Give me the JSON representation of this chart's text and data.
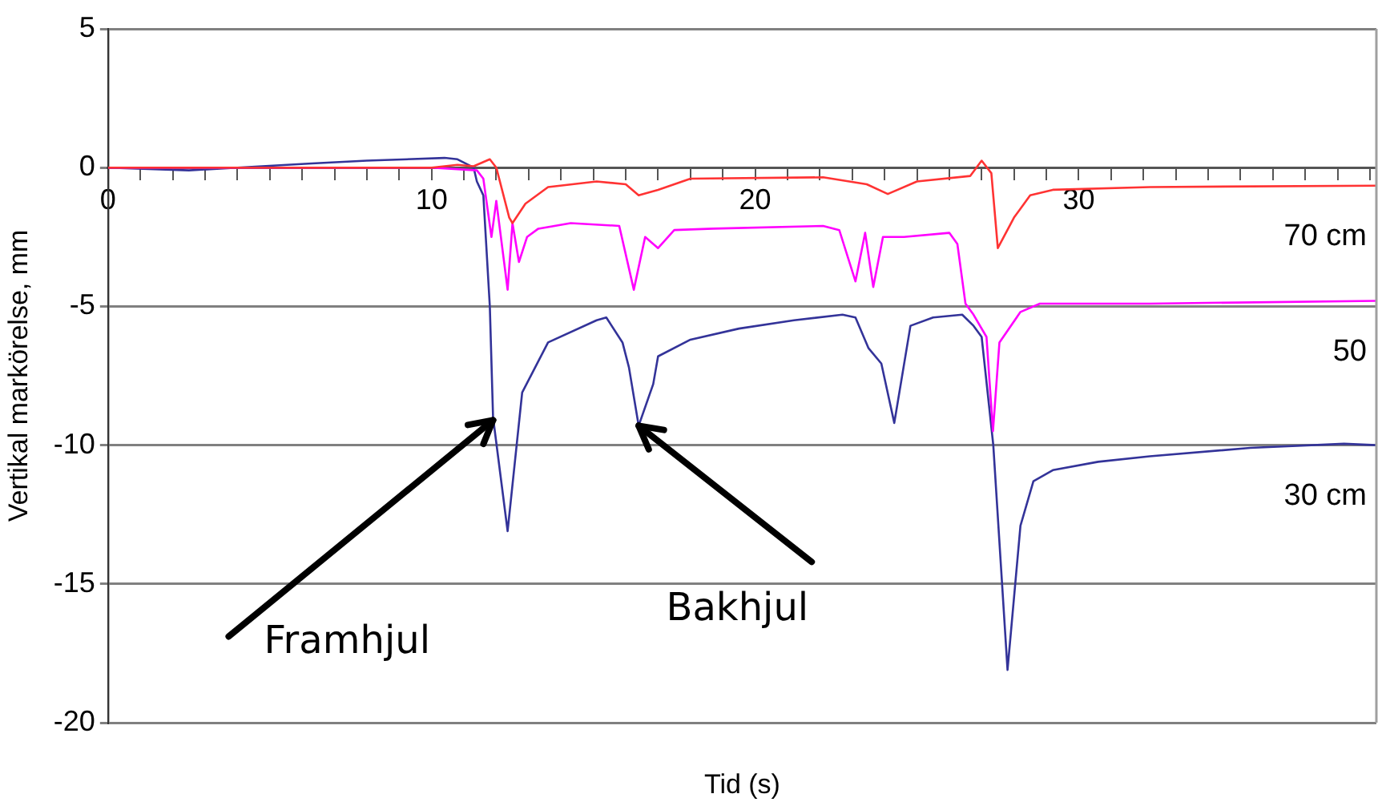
{
  "chart_data": {
    "type": "line",
    "xlabel": "Tid (s)",
    "ylabel": "Vertikal markörelse, mm",
    "xlim": [
      0,
      39.2
    ],
    "ylim": [
      -20,
      5
    ],
    "yticks": [
      -20,
      -15,
      -10,
      -5,
      0,
      5
    ],
    "xticks": [
      0,
      {
        "value": 1,
        "label": null
      },
      {
        "value": 2,
        "label": null
      },
      {
        "value": 3,
        "label": null
      },
      {
        "value": 4,
        "label": null
      },
      {
        "value": 5,
        "label": null
      },
      {
        "value": 6,
        "label": null
      },
      {
        "value": 7,
        "label": null
      },
      {
        "value": 8,
        "label": null
      },
      {
        "value": 9,
        "label": null
      },
      10,
      {
        "value": 11,
        "label": null
      },
      {
        "value": 12,
        "label": null
      },
      {
        "value": 13,
        "label": null
      },
      {
        "value": 14,
        "label": null
      },
      {
        "value": 15,
        "label": null
      },
      {
        "value": 16,
        "label": null
      },
      {
        "value": 17,
        "label": null
      },
      {
        "value": 18,
        "label": null
      },
      {
        "value": 19,
        "label": null
      },
      20,
      {
        "value": 21,
        "label": null
      },
      {
        "value": 22,
        "label": null
      },
      {
        "value": 23,
        "label": null
      },
      {
        "value": 24,
        "label": null
      },
      {
        "value": 25,
        "label": null
      },
      {
        "value": 26,
        "label": null
      },
      {
        "value": 27,
        "label": null
      },
      {
        "value": 28,
        "label": null
      },
      {
        "value": 29,
        "label": null
      },
      30,
      {
        "value": 31,
        "label": null
      },
      {
        "value": 32,
        "label": null
      },
      {
        "value": 33,
        "label": null
      },
      {
        "value": 34,
        "label": null
      },
      {
        "value": 35,
        "label": null
      },
      {
        "value": 36,
        "label": null
      },
      {
        "value": 37,
        "label": null
      },
      {
        "value": 38,
        "label": null
      },
      {
        "value": 39,
        "label": null
      }
    ],
    "grid": "y",
    "legend": false,
    "marker": "none",
    "line_style": "solid",
    "series": [
      {
        "name": "70 cm",
        "color": "#ff3333",
        "x": [
          0,
          5,
          10,
          10.8,
          11.3,
          11.8,
          12,
          12.4,
          12.5,
          12.9,
          13.6,
          15.1,
          16,
          16.4,
          17,
          18,
          22.1,
          23.45,
          24.1,
          25,
          26.65,
          27,
          27.3,
          27.5,
          28,
          28.5,
          29.2,
          32.2,
          39.2
        ],
        "values": [
          0,
          0,
          0,
          0.1,
          0.05,
          0.3,
          0,
          -1.8,
          -2,
          -1.3,
          -0.7,
          -0.5,
          -0.6,
          -1,
          -0.8,
          -0.4,
          -0.35,
          -0.6,
          -0.95,
          -0.5,
          -0.3,
          0.25,
          -0.2,
          -2.9,
          -1.8,
          -1,
          -0.8,
          -0.7,
          -0.65
        ]
      },
      {
        "name": "50",
        "color": "#ff00ff",
        "x": [
          0,
          5,
          10,
          11.4,
          11.6,
          11.85,
          12,
          12.35,
          12.5,
          12.7,
          12.95,
          13.3,
          14.3,
          15.8,
          16.25,
          16.6,
          17,
          17.5,
          18.7,
          22.1,
          22.6,
          23.1,
          23.4,
          23.65,
          23.95,
          24.6,
          26,
          26.25,
          26.5,
          26.75,
          27.15,
          27.35,
          27.55,
          28.2,
          28.8,
          32.2,
          39.2
        ],
        "values": [
          0,
          0,
          0,
          -0.1,
          -0.4,
          -2.5,
          -1.2,
          -4.4,
          -2,
          -3.4,
          -2.5,
          -2.2,
          -2,
          -2.1,
          -4.4,
          -2.5,
          -2.9,
          -2.25,
          -2.2,
          -2.1,
          -2.25,
          -4.1,
          -2.35,
          -4.3,
          -2.5,
          -2.5,
          -2.35,
          -2.75,
          -4.9,
          -5.3,
          -6.1,
          -9.5,
          -6.3,
          -5.2,
          -4.9,
          -4.9,
          -4.8
        ]
      },
      {
        "name": "30 cm",
        "color": "#333399",
        "x": [
          0,
          2.5,
          4,
          6.3,
          8,
          10.4,
          10.8,
          11.3,
          11.4,
          11.6,
          11.8,
          11.9,
          12.35,
          12.8,
          13.6,
          15.1,
          15.4,
          15.9,
          16.1,
          16.4,
          16.85,
          17,
          18,
          19.5,
          21.2,
          22.7,
          23.1,
          23.5,
          23.9,
          24.3,
          24.8,
          25.5,
          26.4,
          26.75,
          27,
          27.36,
          27.8,
          28.2,
          28.6,
          29.2,
          30.6,
          32.2,
          35.3,
          38.2,
          39.2
        ],
        "values": [
          0,
          -0.1,
          0,
          0.15,
          0.25,
          0.35,
          0.3,
          0,
          -0.5,
          -1,
          -5,
          -9,
          -13.1,
          -8.1,
          -6.3,
          -5.5,
          -5.4,
          -6.3,
          -7.2,
          -9.3,
          -7.8,
          -6.8,
          -6.2,
          -5.8,
          -5.5,
          -5.3,
          -5.4,
          -6.5,
          -7.06,
          -9.2,
          -5.7,
          -5.4,
          -5.3,
          -5.7,
          -6.1,
          -10,
          -18.1,
          -12.9,
          -11.3,
          -10.9,
          -10.6,
          -10.4,
          -10.1,
          -9.95,
          -10
        ]
      }
    ],
    "annotations": [
      {
        "text": "Framhjul",
        "x": 11.9,
        "y": -9.1
      },
      {
        "text": "Bakhjul",
        "x": 16.4,
        "y": -9.3
      }
    ]
  }
}
